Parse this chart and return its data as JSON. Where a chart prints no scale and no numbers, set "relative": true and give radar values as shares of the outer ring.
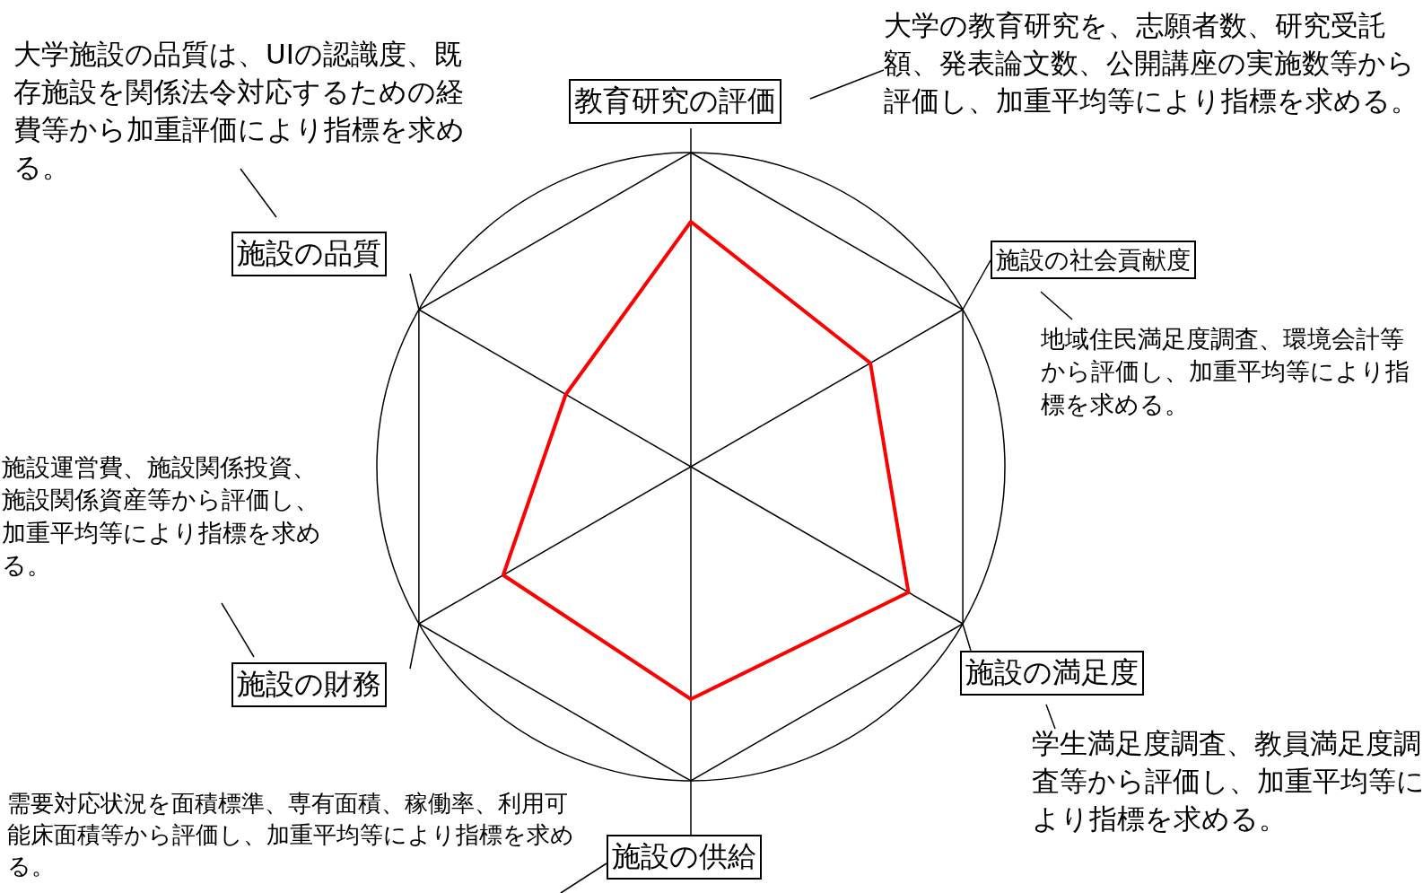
{
  "chart_data": {
    "type": "radar",
    "relative": true,
    "categories": [
      "教育研究の評価",
      "施設の社会貢献度",
      "施設の満足度",
      "施設の供給",
      "施設の財務",
      "施設の品質"
    ],
    "series": [
      {
        "color": "#ff0000",
        "values": [
          0.78,
          0.66,
          0.8,
          0.74,
          0.69,
          0.46
        ]
      }
    ],
    "marker": "none",
    "legend": false,
    "annotations": [
      "大学の教育研究を、志願者数、研究受託額、発表論文数、公開講座の実施数等から評価し、加重平均等により指標を求める。",
      "地域住民満足度調査、環境会計等から評価し、加重平均等により指標を求める。",
      "学生満足度調査、教員満足度調査等から評価し、加重平均等により指標を求める。",
      "需要対応状況を面積標準、専有面積、稼働率、利用可能床面積等から評価し、加重平均等により指標を求める。",
      "施設運営費、施設関係投資、施設関係資産等から評価し、加重平均等により指標を求める。",
      "大学施設の品質は、UIの認識度、既存施設を関係法令対応するための経費等から加重評価により指標を求める。"
    ]
  }
}
